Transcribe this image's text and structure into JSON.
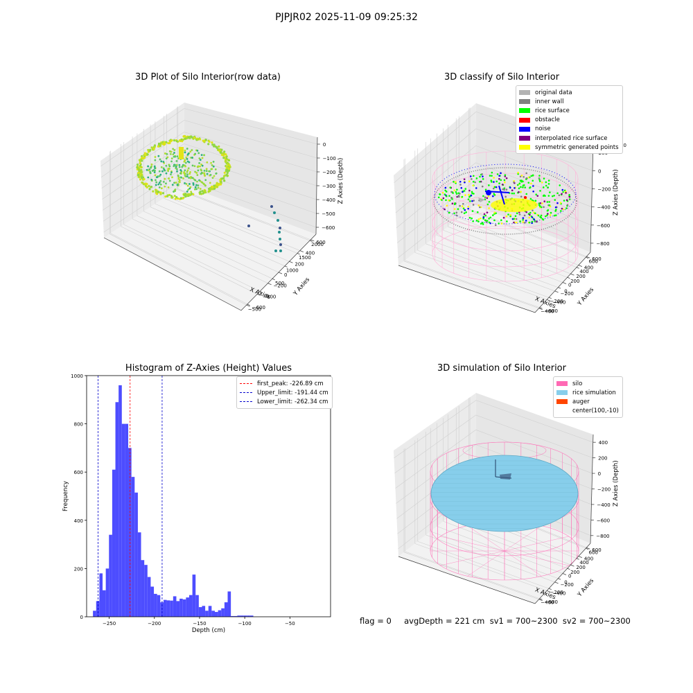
{
  "suptitle": "PJPJR02 2025-11-09 09:25:32",
  "footer_text": "flag = 0     avgDepth = 221 cm  sv1 = 700~2300  sv2 = 700~2300",
  "colors": {
    "silo": "#ff69b4",
    "rice_simulation": "#87ceeb",
    "auger": "#ff4500",
    "original_data": "#b3b3b3",
    "inner_wall": "#808080",
    "rice_surface": "#00ff00",
    "obstacle": "#ff0000",
    "noise": "#0000ff",
    "interpolated_rice_surface": "#800080",
    "symmetric_generated_points": "#ffff00",
    "histogram_bar": "#4d4dff",
    "first_peak_line": "#ff0000",
    "limit_line": "#0000cd"
  },
  "chart_data": [
    {
      "type": "scatter",
      "projection": "3d",
      "title": "3D Plot of Silo Interior(row data)",
      "xlabel": "X Axies",
      "ylabel": "Y Axies",
      "zlabel": "Z Axies (Depth)",
      "x_ticks": [
        "−500",
        "0",
        "500",
        "1000",
        "1500",
        "2000"
      ],
      "y_ticks": [
        "−600",
        "−400",
        "−200",
        "0",
        "200",
        "400",
        "600"
      ],
      "z_ticks": [
        "0",
        "−100",
        "−200",
        "−300",
        "−400",
        "−500",
        "−600"
      ],
      "colormap": "viridis"
    },
    {
      "type": "scatter",
      "projection": "3d",
      "title": "3D classify of Silo Interior",
      "xlabel": "X Axies",
      "ylabel": "Y Axies",
      "zlabel": "Z Axies (Depth)",
      "x_ticks": [
        "−400",
        "−200",
        "0",
        "200",
        "400",
        "600"
      ],
      "y_ticks": [
        "−600",
        "−400",
        "−200",
        "0",
        "200",
        "400",
        "600"
      ],
      "z_ticks": [
        "200",
        "0",
        "−200",
        "−400",
        "−600",
        "−800"
      ],
      "z_ticks_partial": [
        "00"
      ],
      "legend_position": "upper right",
      "legend": [
        {
          "label": "original data",
          "color_key": "original_data"
        },
        {
          "label": "inner wall",
          "color_key": "inner_wall"
        },
        {
          "label": "rice surface",
          "color_key": "rice_surface"
        },
        {
          "label": "obstacle",
          "color_key": "obstacle"
        },
        {
          "label": "noise",
          "color_key": "noise"
        },
        {
          "label": "interpolated rice surface",
          "color_key": "interpolated_rice_surface"
        },
        {
          "label": "symmetric generated points",
          "color_key": "symmetric_generated_points"
        }
      ]
    },
    {
      "type": "bar",
      "title": "Histogram of Z-Axies (Height) Values",
      "xlabel": "Depth (cm)",
      "ylabel": "Frequency",
      "xlim": [
        -275,
        -5
      ],
      "ylim": [
        0,
        1000
      ],
      "x_ticks": [
        -250,
        -200,
        -150,
        -100,
        -50
      ],
      "y_ticks": [
        0,
        200,
        400,
        600,
        800,
        1000
      ],
      "bin_start": -268,
      "bin_width": 3.55,
      "values": [
        25,
        65,
        180,
        110,
        200,
        340,
        610,
        890,
        960,
        800,
        800,
        700,
        580,
        515,
        350,
        235,
        215,
        165,
        125,
        95,
        90,
        60,
        70,
        68,
        67,
        85,
        65,
        75,
        72,
        80,
        90,
        175,
        90,
        40,
        45,
        25,
        45,
        25,
        20,
        27,
        35,
        60,
        105,
        3,
        3,
        5,
        5,
        5,
        5,
        5
      ],
      "vlines": [
        {
          "label": "first_peak: -226.89 cm",
          "x": -226.89,
          "color_key": "first_peak_line"
        },
        {
          "label": "Upper_limit: -191.44 cm",
          "x": -191.44,
          "color_key": "limit_line"
        },
        {
          "label": "Lower_limit: -262.34 cm",
          "x": -262.34,
          "color_key": "limit_line"
        }
      ],
      "legend_position": "upper right"
    },
    {
      "type": "surface",
      "projection": "3d",
      "title": "3D simulation of Silo Interior",
      "xlabel": "X Axies",
      "ylabel": "Y Axies",
      "zlabel": "Z Axies (Depth)",
      "x_ticks": [
        "−400",
        "−200",
        "0",
        "200",
        "400",
        "600"
      ],
      "y_ticks": [
        "−600",
        "−400",
        "−200",
        "0",
        "200",
        "400",
        "600"
      ],
      "z_ticks": [
        "400",
        "200",
        "0",
        "−200",
        "−400",
        "−600",
        "−800"
      ],
      "legend_position": "upper right",
      "legend": [
        {
          "label": "silo",
          "color_key": "silo"
        },
        {
          "label": "rice simulation",
          "color_key": "rice_simulation"
        },
        {
          "label": "auger",
          "color_key": "auger"
        },
        {
          "label": "center(100,-10)",
          "color_key": ""
        }
      ]
    }
  ]
}
